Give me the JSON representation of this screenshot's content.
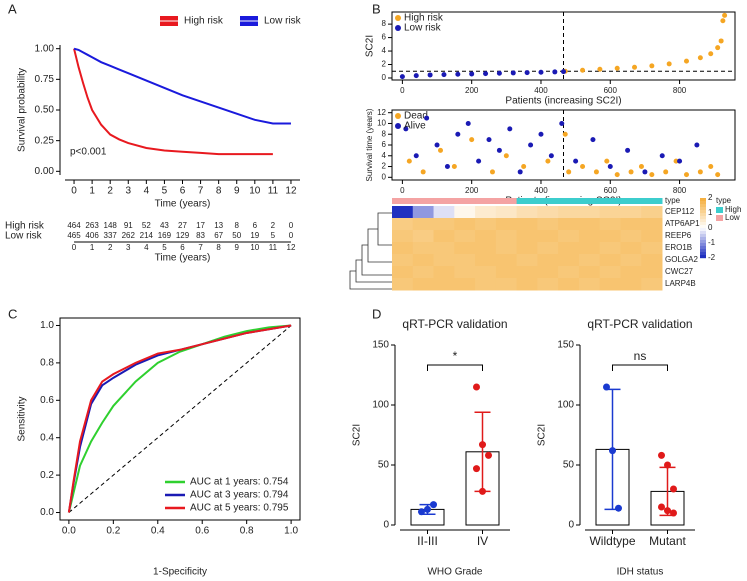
{
  "chart_data": [
    {
      "type": "line",
      "panel": "A",
      "xlabel": "Time (years)",
      "ylabel": "Survival probability",
      "annotation": "p<0.001",
      "x": [
        0,
        0.25,
        0.5,
        0.75,
        1,
        1.5,
        2,
        2.5,
        3,
        4,
        5,
        6,
        7,
        8,
        9,
        10,
        11,
        12
      ],
      "series": [
        {
          "name": "High risk",
          "color": "#e8191f",
          "values": [
            1,
            0.85,
            0.72,
            0.6,
            0.5,
            0.38,
            0.3,
            0.26,
            0.23,
            0.19,
            0.17,
            0.16,
            0.15,
            0.14,
            0.14,
            0.14,
            0.14,
            null
          ]
        },
        {
          "name": "Low risk",
          "color": "#1a1adc",
          "values": [
            1,
            0.99,
            0.97,
            0.95,
            0.93,
            0.89,
            0.86,
            0.83,
            0.8,
            0.74,
            0.68,
            0.62,
            0.57,
            0.52,
            0.47,
            0.42,
            0.39,
            0.39
          ]
        }
      ],
      "xlim": [
        -0.5,
        12.5
      ],
      "xticks": [
        0,
        1,
        2,
        3,
        4,
        5,
        6,
        7,
        8,
        9,
        10,
        11,
        12
      ],
      "ylim": [
        -0.03,
        1.03
      ],
      "yticks": [
        {
          "value": 0,
          "label": "0.00"
        },
        {
          "value": 0.25,
          "label": "0.25"
        },
        {
          "value": 0.5,
          "label": "0.50"
        },
        {
          "value": 0.75,
          "label": "0.75"
        },
        {
          "value": 1,
          "label": "1.00"
        }
      ],
      "risk_table": {
        "x": [
          0,
          1,
          2,
          3,
          4,
          5,
          6,
          7,
          8,
          9,
          10,
          11,
          12
        ],
        "xlabel": "Time (years)",
        "rows": [
          {
            "name": "High risk",
            "color": "#e8191f",
            "values": [
              464,
              263,
              148,
              91,
              52,
              43,
              27,
              17,
              13,
              8,
              6,
              2,
              0
            ]
          },
          {
            "name": "Low risk",
            "color": "#1a1adc",
            "values": [
              465,
              406,
              337,
              262,
              214,
              169,
              129,
              83,
              67,
              50,
              19,
              5,
              0
            ]
          }
        ]
      }
    },
    {
      "type": "scatter",
      "panel": "B",
      "xlabel": "Patients (increasing SC2I)",
      "ylabel": "SC2I",
      "series": [
        {
          "name": "High risk",
          "color": "#f5a623",
          "x": [
            470,
            520,
            570,
            620,
            670,
            720,
            770,
            820,
            860,
            890,
            910,
            920,
            925,
            930
          ],
          "values": [
            1,
            1.15,
            1.3,
            1.45,
            1.6,
            1.8,
            2.1,
            2.5,
            3,
            3.6,
            4.5,
            5.5,
            8.5,
            9.3
          ]
        },
        {
          "name": "Low risk",
          "color": "#1a1ab4",
          "x": [
            0,
            40,
            80,
            120,
            160,
            200,
            240,
            280,
            320,
            360,
            400,
            440,
            465
          ],
          "values": [
            0.2,
            0.35,
            0.45,
            0.5,
            0.55,
            0.6,
            0.65,
            0.7,
            0.75,
            0.8,
            0.85,
            0.9,
            0.95
          ]
        }
      ],
      "cutoff_x": 465,
      "cutoff_y": 1,
      "xlim": [
        -30,
        960
      ],
      "xticks": [
        0,
        200,
        400,
        600,
        800
      ],
      "ylim": [
        -0.3,
        9.8
      ],
      "yticks": [
        0,
        2,
        4,
        6,
        8
      ]
    },
    {
      "type": "scatter",
      "xlabel": "Patients (increasing SC2I)",
      "ylabel": "Survival time (years)",
      "series": [
        {
          "name": "Dead",
          "color": "#f5a623",
          "x": [
            20,
            60,
            110,
            150,
            200,
            260,
            300,
            350,
            420,
            470,
            480,
            520,
            560,
            590,
            620,
            660,
            690,
            720,
            760,
            790,
            820,
            860,
            890,
            910
          ],
          "values": [
            3,
            1,
            5,
            2,
            7,
            1,
            4,
            2,
            3,
            8,
            1,
            2,
            1,
            3,
            0.5,
            1,
            2,
            0.5,
            1,
            3,
            0.5,
            1,
            2,
            0.5
          ]
        },
        {
          "name": "Alive",
          "color": "#1a1ab4",
          "x": [
            10,
            40,
            70,
            100,
            130,
            160,
            190,
            220,
            250,
            280,
            310,
            340,
            370,
            400,
            430,
            460,
            500,
            550,
            600,
            650,
            700,
            750,
            800,
            850
          ],
          "values": [
            9,
            4,
            11,
            6,
            2,
            8,
            10,
            3,
            7,
            5,
            9,
            1,
            6,
            8,
            4,
            10,
            3,
            7,
            2,
            5,
            1,
            4,
            3,
            6
          ]
        }
      ],
      "cutoff_x": 465,
      "xlim": [
        -30,
        960
      ],
      "xticks": [
        0,
        200,
        400,
        600,
        800
      ],
      "ylim": [
        -0.5,
        12.5
      ],
      "yticks": [
        0,
        2,
        4,
        6,
        8,
        10,
        12
      ]
    },
    {
      "type": "heatmap",
      "type_label": "type",
      "column_types": [
        "Low",
        "Low",
        "Low",
        "Low",
        "Low",
        "Low",
        "High",
        "High",
        "High",
        "High",
        "High",
        "High",
        "High"
      ],
      "legend": [
        {
          "name": "High",
          "color": "#3ccdcd"
        },
        {
          "name": "Low",
          "color": "#f4a3a3"
        }
      ],
      "scale_ticks": [
        2,
        1,
        0,
        -1,
        -2
      ],
      "rows": [
        {
          "name": "CEP112",
          "values": [
            -2,
            -1,
            -0.3,
            0.2,
            0.5,
            0.6,
            0.8,
            0.9,
            1,
            1,
            1.1,
            1.1,
            1.2
          ]
        },
        {
          "name": "ATP6AP1",
          "values": [
            1.3,
            1.4,
            1.4,
            1.5,
            1.4,
            1.5,
            1.5,
            1.4,
            1.5,
            1.5,
            1.4,
            1.5,
            1.5
          ]
        },
        {
          "name": "REEP6",
          "values": [
            1.4,
            1.3,
            1.5,
            1.4,
            1.5,
            1.4,
            1.5,
            1.5,
            1.4,
            1.5,
            1.5,
            1.4,
            1.5
          ]
        },
        {
          "name": "ERO1B",
          "values": [
            1.5,
            1.4,
            1.4,
            1.5,
            1.5,
            1.4,
            1.5,
            1.4,
            1.5,
            1.5,
            1.4,
            1.5,
            1.4
          ]
        },
        {
          "name": "GOLGA2",
          "values": [
            1.4,
            1.5,
            1.4,
            1.4,
            1.5,
            1.5,
            1.4,
            1.5,
            1.5,
            1.4,
            1.5,
            1.4,
            1.5
          ]
        },
        {
          "name": "CWC27",
          "values": [
            1.5,
            1.4,
            1.5,
            1.4,
            1.4,
            1.5,
            1.5,
            1.5,
            1.4,
            1.5,
            1.4,
            1.5,
            1.5
          ]
        },
        {
          "name": "LARP4B",
          "values": [
            1.4,
            1.5,
            1.5,
            1.5,
            1.4,
            1.4,
            1.5,
            1.4,
            1.5,
            1.4,
            1.5,
            1.5,
            1.4
          ]
        }
      ]
    },
    {
      "type": "line",
      "panel": "C",
      "xlabel": "1-Specificity",
      "ylabel": "Sensitivity",
      "x": [
        0,
        0.02,
        0.05,
        0.1,
        0.15,
        0.2,
        0.3,
        0.4,
        0.5,
        0.6,
        0.7,
        0.8,
        0.9,
        1
      ],
      "series": [
        {
          "name": "AUC at 1 years: 0.754",
          "color": "#2fd02f",
          "values": [
            0,
            0.1,
            0.25,
            0.38,
            0.48,
            0.57,
            0.7,
            0.8,
            0.86,
            0.9,
            0.94,
            0.97,
            0.99,
            1
          ]
        },
        {
          "name": "AUC at 3 years: 0.794",
          "color": "#1a1ab4",
          "values": [
            0,
            0.15,
            0.35,
            0.58,
            0.68,
            0.72,
            0.79,
            0.84,
            0.87,
            0.9,
            0.93,
            0.96,
            0.98,
            1
          ]
        },
        {
          "name": "AUC at 5 years: 0.795",
          "color": "#e8191f",
          "values": [
            0,
            0.16,
            0.38,
            0.6,
            0.7,
            0.74,
            0.8,
            0.85,
            0.87,
            0.9,
            0.93,
            0.96,
            0.98,
            1
          ]
        }
      ],
      "xlim": [
        -0.04,
        1.04
      ],
      "xticks": [
        {
          "value": 0,
          "label": "0.0"
        },
        {
          "value": 0.2,
          "label": "0.2"
        },
        {
          "value": 0.4,
          "label": "0.4"
        },
        {
          "value": 0.6,
          "label": "0.6"
        },
        {
          "value": 0.8,
          "label": "0.8"
        },
        {
          "value": 1,
          "label": "1.0"
        }
      ],
      "ylim": [
        -0.04,
        1.04
      ],
      "yticks": [
        {
          "value": 0,
          "label": "0.0"
        },
        {
          "value": 0.2,
          "label": "0.2"
        },
        {
          "value": 0.4,
          "label": "0.4"
        },
        {
          "value": 0.6,
          "label": "0.6"
        },
        {
          "value": 0.8,
          "label": "0.8"
        },
        {
          "value": 1,
          "label": "1.0"
        }
      ]
    },
    {
      "type": "bar",
      "panel": "D",
      "title": "qRT-PCR validation",
      "ylabel": "SC2I",
      "xlabel": "WHO Grade",
      "annotation": "*",
      "categories": [
        "II-III",
        "IV"
      ],
      "values": [
        13,
        61
      ],
      "errors": [
        4,
        33
      ],
      "colors": [
        "#1a3ad0",
        "#e01a1a"
      ],
      "points": [
        [
          11,
          13,
          17
        ],
        [
          115,
          67,
          58,
          47,
          28
        ]
      ],
      "ylim": [
        0,
        150
      ],
      "yticks": [
        0,
        50,
        100,
        150
      ]
    },
    {
      "type": "bar",
      "title": "qRT-PCR validation",
      "ylabel": "SC2I",
      "xlabel": "IDH status",
      "annotation": "ns",
      "categories": [
        "Wildtype",
        "Mutant"
      ],
      "values": [
        63,
        28
      ],
      "errors": [
        50,
        20
      ],
      "colors": [
        "#1a3ad0",
        "#e01a1a"
      ],
      "points": [
        [
          115,
          62,
          14
        ],
        [
          58,
          50,
          30,
          15,
          12,
          10
        ]
      ],
      "ylim": [
        0,
        150
      ],
      "yticks": [
        0,
        50,
        100,
        150
      ]
    }
  ]
}
